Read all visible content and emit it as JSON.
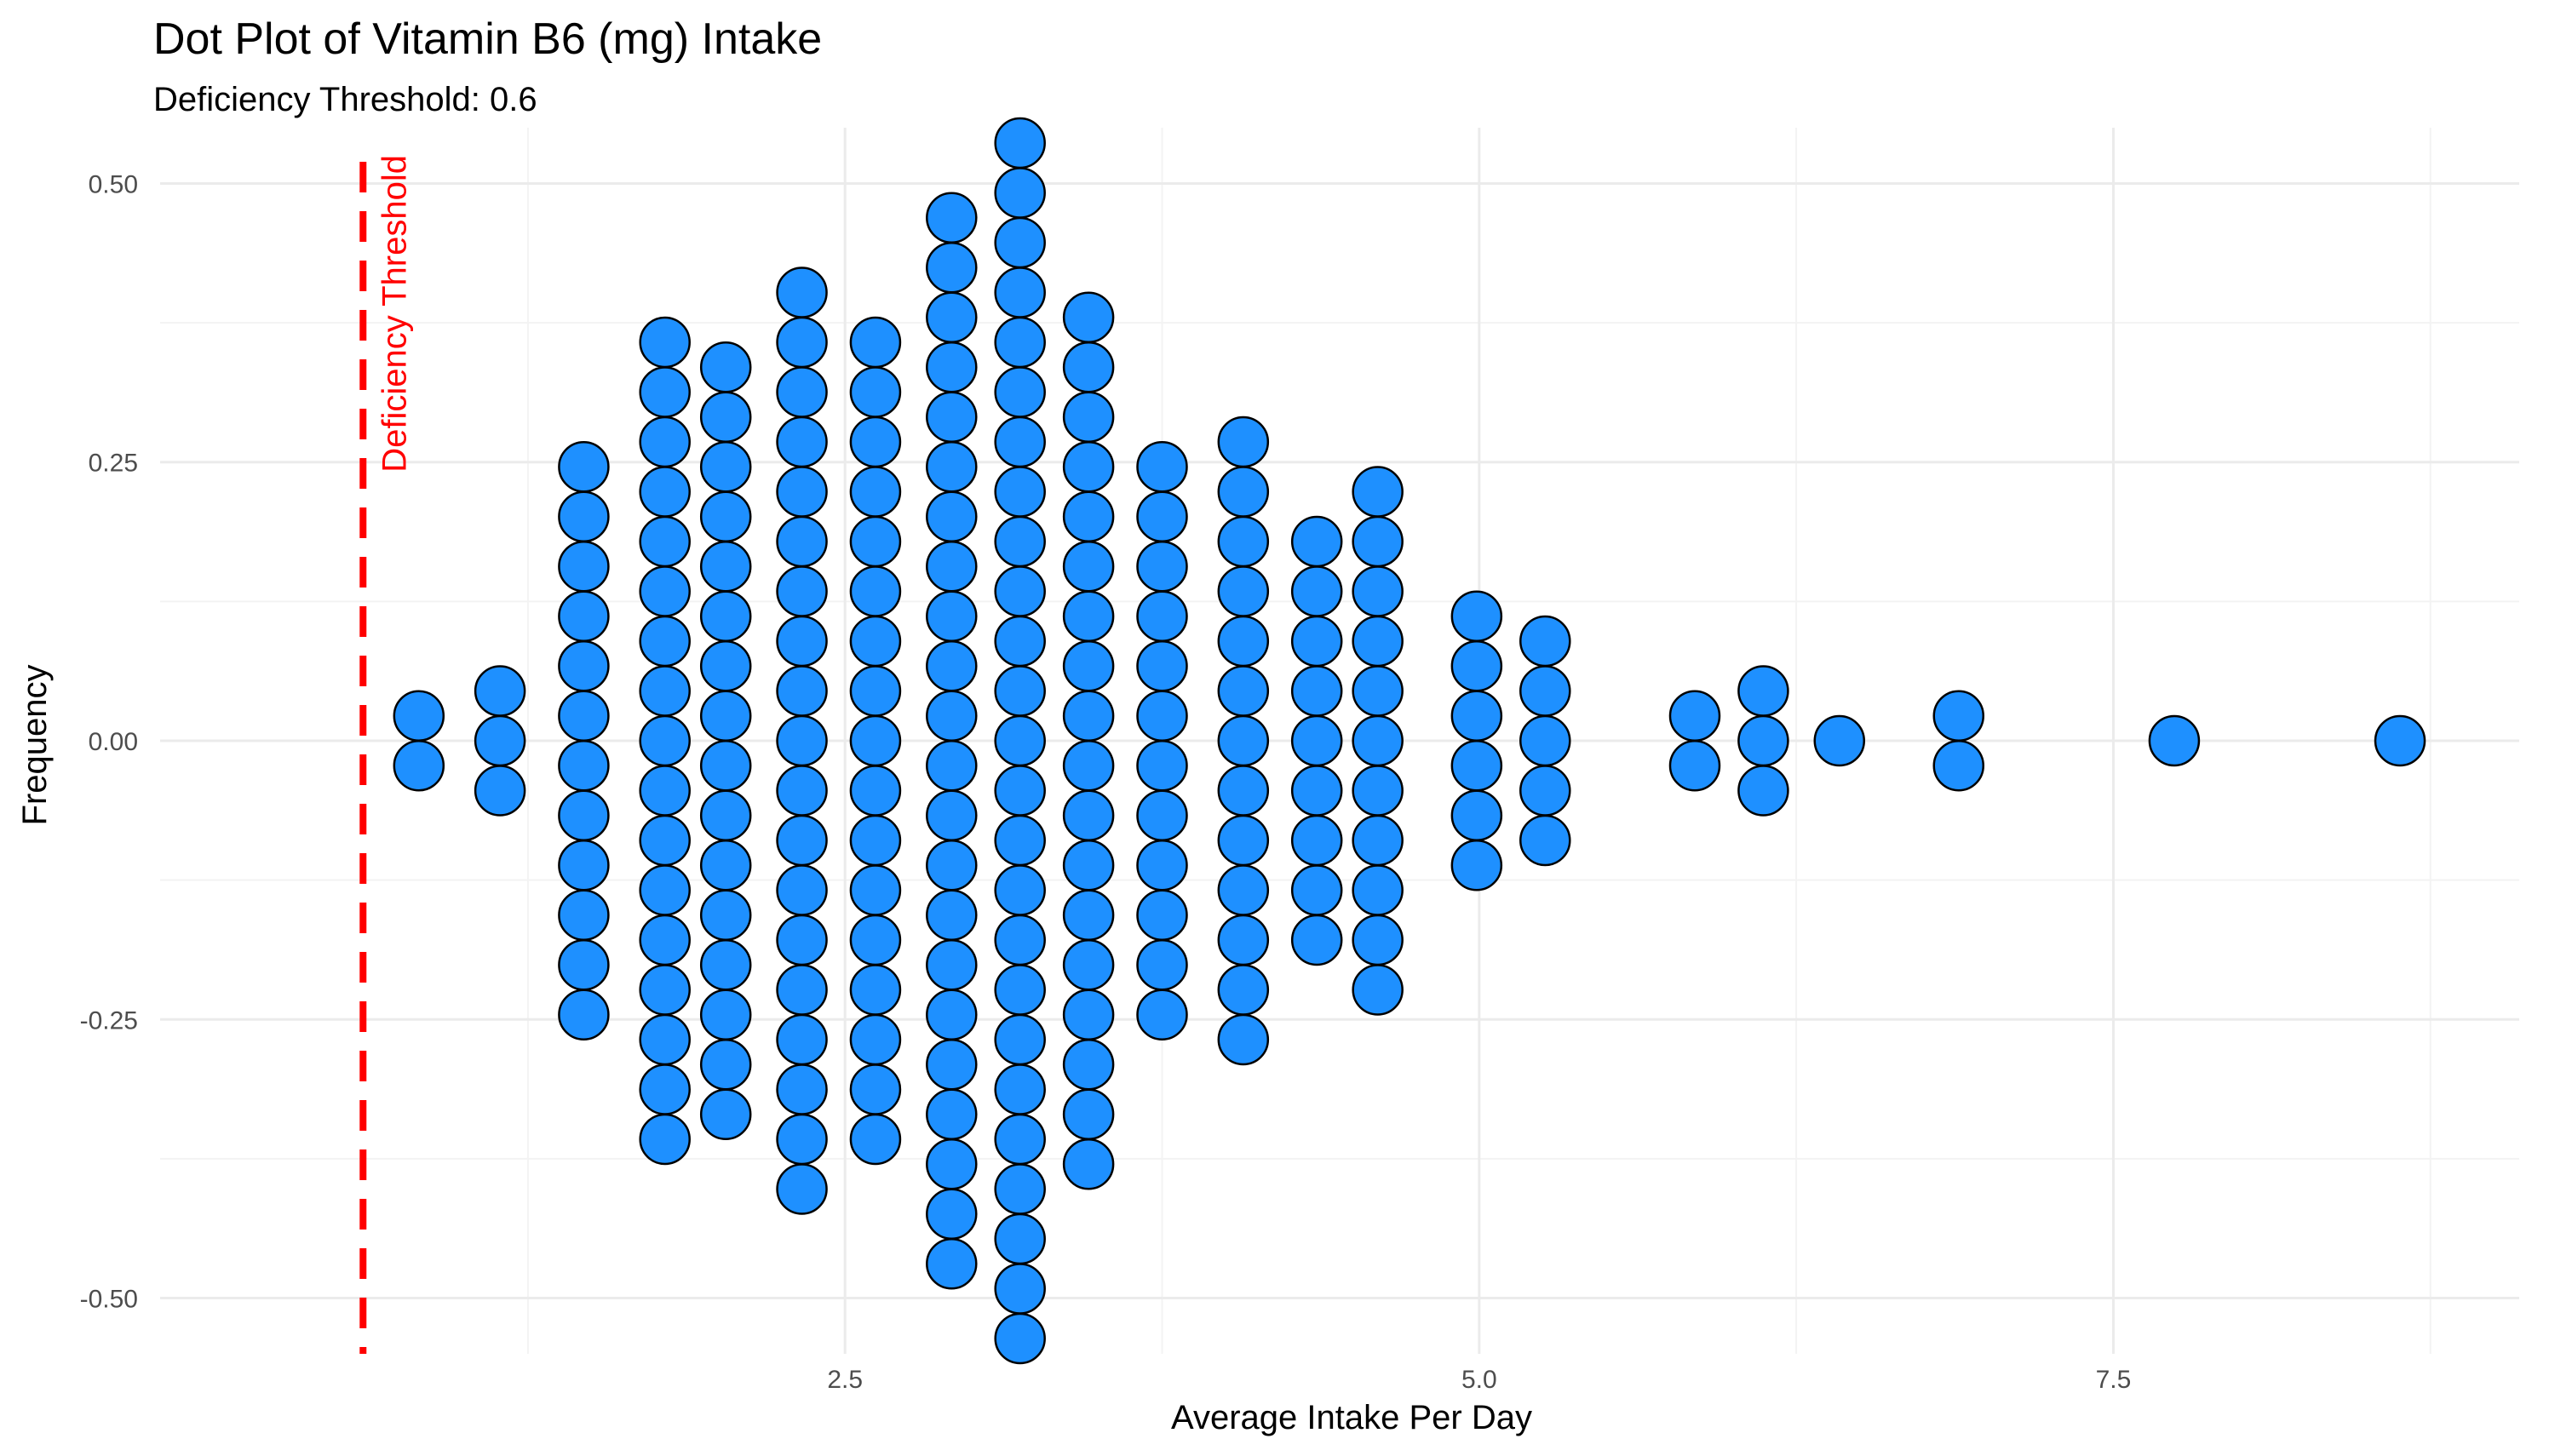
{
  "chart_data": {
    "type": "dotplot",
    "title": "Dot Plot of Vitamin B6 (mg) Intake",
    "subtitle": "Deficiency Threshold: 0.6",
    "xlabel": "Average Intake Per Day",
    "ylabel": "Frequency",
    "xlim": [
      -0.2,
      9.1
    ],
    "ylim": [
      -0.55,
      0.55
    ],
    "x_ticks": [
      {
        "value": 2.5,
        "label": "2.5"
      },
      {
        "value": 5.0,
        "label": "5.0"
      },
      {
        "value": 7.5,
        "label": "7.5"
      }
    ],
    "y_ticks": [
      {
        "value": 0.5,
        "label": "0.50"
      },
      {
        "value": 0.25,
        "label": "0.25"
      },
      {
        "value": 0.0,
        "label": "0.00"
      },
      {
        "value": -0.25,
        "label": "-0.25"
      },
      {
        "value": -0.5,
        "label": "-0.50"
      }
    ],
    "grid": true,
    "dot_color": "#1E90FF",
    "dot_outline": "#000000",
    "stacking": "center",
    "bins": [
      {
        "x": 0.82,
        "count": 2
      },
      {
        "x": 1.14,
        "count": 3
      },
      {
        "x": 1.47,
        "count": 12
      },
      {
        "x": 1.79,
        "count": 17
      },
      {
        "x": 2.03,
        "count": 16
      },
      {
        "x": 2.33,
        "count": 19
      },
      {
        "x": 2.62,
        "count": 17
      },
      {
        "x": 2.92,
        "count": 22
      },
      {
        "x": 3.19,
        "count": 25
      },
      {
        "x": 3.46,
        "count": 18
      },
      {
        "x": 3.75,
        "count": 12
      },
      {
        "x": 4.07,
        "count": 13
      },
      {
        "x": 4.36,
        "count": 9
      },
      {
        "x": 4.6,
        "count": 11
      },
      {
        "x": 4.99,
        "count": 6
      },
      {
        "x": 5.26,
        "count": 5
      },
      {
        "x": 5.85,
        "count": 2
      },
      {
        "x": 6.12,
        "count": 3
      },
      {
        "x": 6.42,
        "count": 1
      },
      {
        "x": 6.89,
        "count": 2
      },
      {
        "x": 7.74,
        "count": 1
      },
      {
        "x": 8.63,
        "count": 1
      }
    ],
    "threshold": {
      "value": 0.6,
      "label": "Deficiency Threshold",
      "color": "#FF0000",
      "line_style": "dashed"
    }
  }
}
